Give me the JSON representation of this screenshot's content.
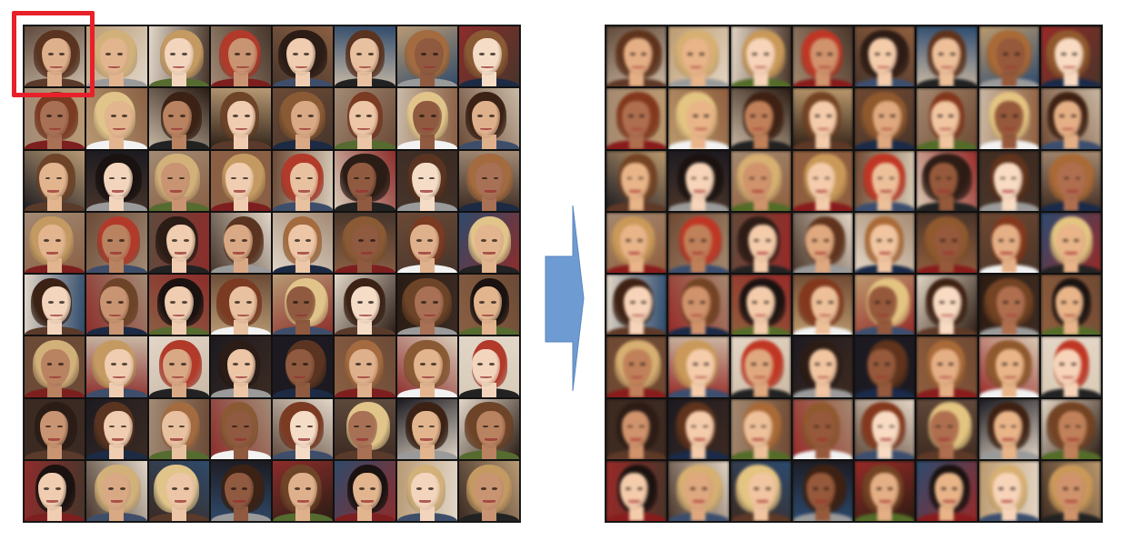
{
  "figure": {
    "left_grid": {
      "label": "",
      "rows": 8,
      "cols": 8
    },
    "right_grid": {
      "label": "",
      "rows": 8,
      "cols": 8
    },
    "highlight_color": "#e8202a",
    "arrow_color": "#6f9bd3"
  },
  "palette": {
    "backgrounds": [
      "#2a1c14",
      "#6b4a36",
      "#c9b9a6",
      "#1c1a20",
      "#8a5f43",
      "#d8cbb8",
      "#3b2a22",
      "#a28a74",
      "#5f4a3d",
      "#e2d6c8",
      "#47352b",
      "#2f4a6a",
      "#8c2d2b",
      "#b89a74"
    ],
    "hair": [
      "#3b2215",
      "#5a3420",
      "#1a1210",
      "#8a5a34",
      "#c49a62",
      "#e0c48a",
      "#2b1c16",
      "#6e4428",
      "#a36b3f",
      "#d2b07a",
      "#7b3a22",
      "#b23a2a"
    ],
    "skin": [
      "#e8c1a0",
      "#d9a985",
      "#f0cdb0",
      "#c99472",
      "#b98260",
      "#f3d5bd",
      "#e2b58f",
      "#a87055",
      "#dfb08c",
      "#f5dcc6",
      "#8f5a40",
      "#ecc6a6"
    ],
    "cloth": [
      "#222222",
      "#3e4e6a",
      "#f2f2f2",
      "#7d1f1f",
      "#556b2f",
      "#1c2a44",
      "#9a9a9a",
      "#5a3a2a"
    ]
  }
}
